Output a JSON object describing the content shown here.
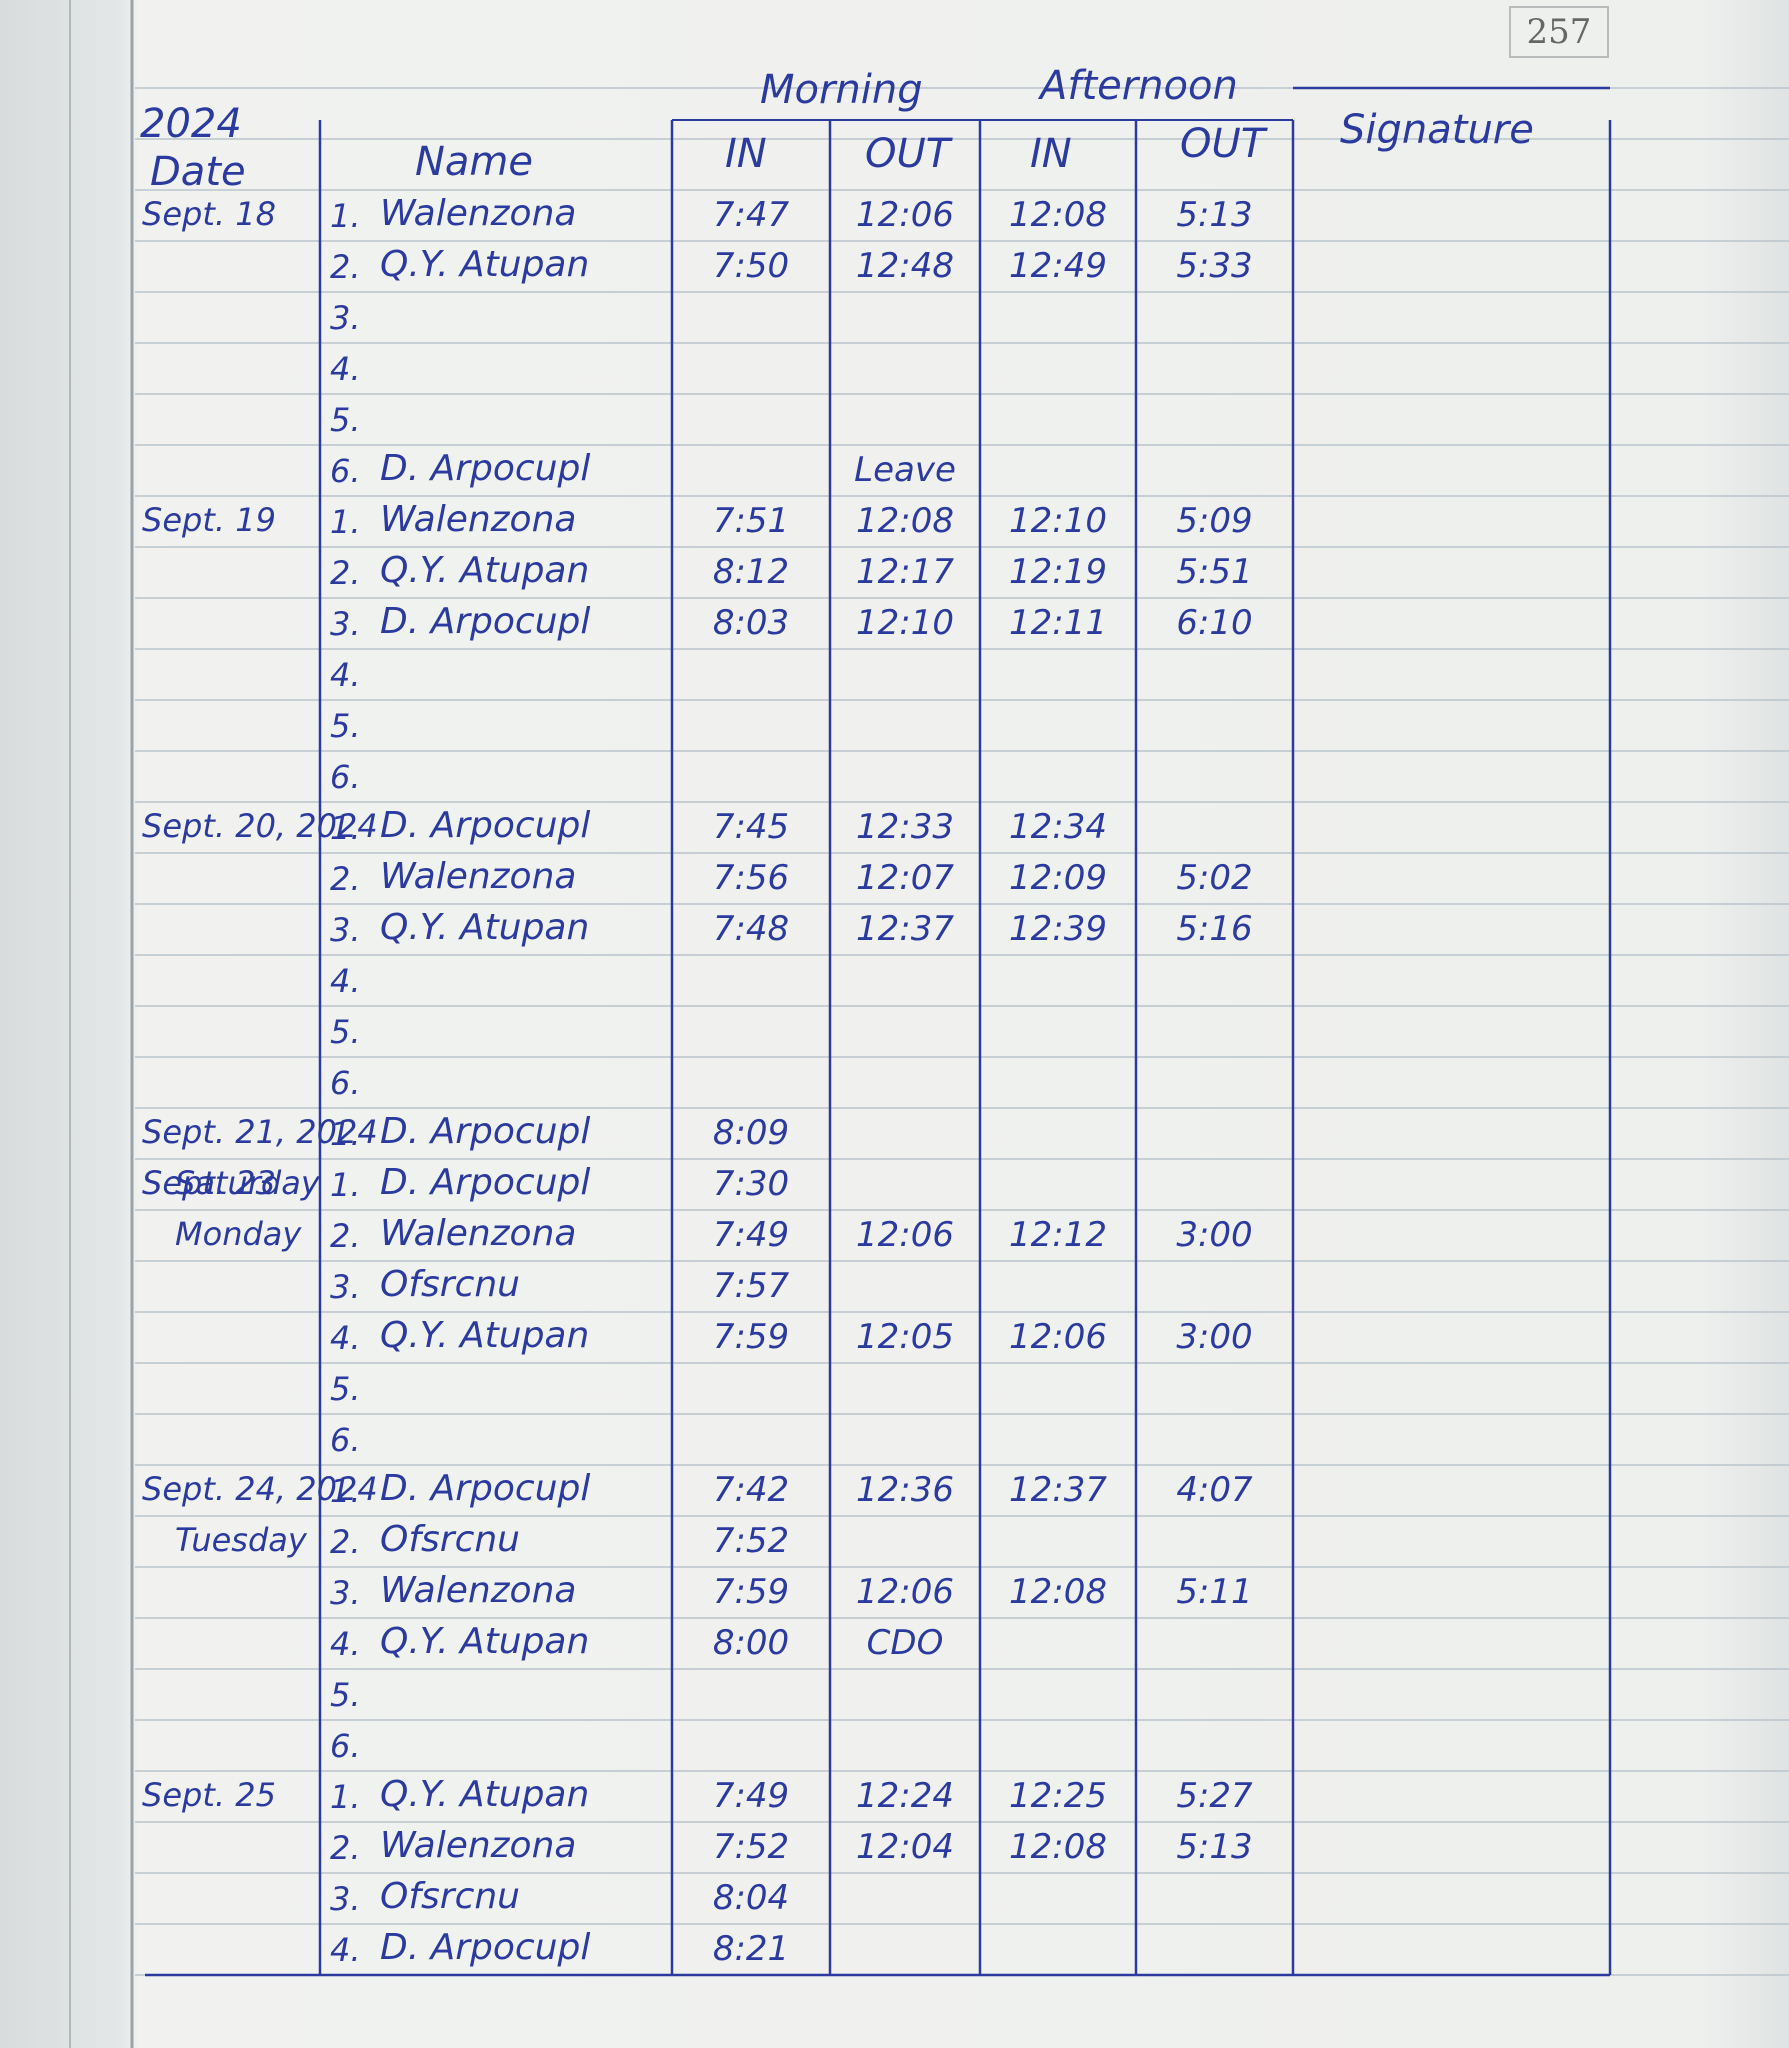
{
  "page_number": "257",
  "year": "2024",
  "headers": {
    "date": "Date",
    "name": "Name",
    "morning": "Morning",
    "afternoon": "Afternoon",
    "am_in": "IN",
    "am_out": "OUT",
    "pm_in": "IN",
    "pm_out": "OUT",
    "signature": "Signature"
  },
  "days": [
    {
      "date": "Sept. 18",
      "entries": [
        {
          "no": "1.",
          "name": "Walenzona",
          "am_in": "7:47",
          "am_out": "12:06",
          "pm_in": "12:08",
          "pm_out": "5:13"
        },
        {
          "no": "2.",
          "name": "Q.Y. Atupan",
          "am_in": "7:50",
          "am_out": "12:48",
          "pm_in": "12:49",
          "pm_out": "5:33"
        },
        {
          "no": "3."
        },
        {
          "no": "4."
        },
        {
          "no": "5."
        },
        {
          "no": "6.",
          "name": "D. Arpocupl",
          "am_out": "Leave"
        }
      ]
    },
    {
      "date": "Sept. 19",
      "entries": [
        {
          "no": "1.",
          "name": "Walenzona",
          "am_in": "7:51",
          "am_out": "12:08",
          "pm_in": "12:10",
          "pm_out": "5:09"
        },
        {
          "no": "2.",
          "name": "Q.Y. Atupan",
          "am_in": "8:12",
          "am_out": "12:17",
          "pm_in": "12:19",
          "pm_out": "5:51"
        },
        {
          "no": "3.",
          "name": "D. Arpocupl",
          "am_in": "8:03",
          "am_out": "12:10",
          "pm_in": "12:11",
          "pm_out": "6:10"
        },
        {
          "no": "4."
        },
        {
          "no": "5."
        },
        {
          "no": "6."
        }
      ]
    },
    {
      "date": "Sept. 20, 2024",
      "entries": [
        {
          "no": "1.",
          "name": "D. Arpocupl",
          "am_in": "7:45",
          "am_out": "12:33",
          "pm_in": "12:34"
        },
        {
          "no": "2.",
          "name": "Walenzona",
          "am_in": "7:56",
          "am_out": "12:07",
          "pm_in": "12:09",
          "pm_out": "5:02"
        },
        {
          "no": "3.",
          "name": "Q.Y. Atupan",
          "am_in": "7:48",
          "am_out": "12:37",
          "pm_in": "12:39",
          "pm_out": "5:16"
        },
        {
          "no": "4."
        },
        {
          "no": "5."
        },
        {
          "no": "6."
        }
      ]
    },
    {
      "date": "Sept. 21, 2024",
      "weekday": "Saturday",
      "entries": [
        {
          "no": "1.",
          "name": "D. Arpocupl",
          "am_in": "8:09"
        }
      ]
    },
    {
      "date": "Sept. 23",
      "weekday": "Monday",
      "entries": [
        {
          "no": "1.",
          "name": "D. Arpocupl",
          "am_in": "7:30"
        },
        {
          "no": "2.",
          "name": "Walenzona",
          "am_in": "7:49",
          "am_out": "12:06",
          "pm_in": "12:12",
          "pm_out": "3:00"
        },
        {
          "no": "3.",
          "name": "Ofsrcnu",
          "am_in": "7:57"
        },
        {
          "no": "4.",
          "name": "Q.Y. Atupan",
          "am_in": "7:59",
          "am_out": "12:05",
          "pm_in": "12:06",
          "pm_out": "3:00"
        },
        {
          "no": "5."
        },
        {
          "no": "6."
        }
      ]
    },
    {
      "date": "Sept. 24, 2024",
      "weekday": "Tuesday",
      "entries": [
        {
          "no": "1.",
          "name": "D. Arpocupl",
          "am_in": "7:42",
          "am_out": "12:36",
          "pm_in": "12:37",
          "pm_out": "4:07"
        },
        {
          "no": "2.",
          "name": "Ofsrcnu",
          "am_in": "7:52"
        },
        {
          "no": "3.",
          "name": "Walenzona",
          "am_in": "7:59",
          "am_out": "12:06",
          "pm_in": "12:08",
          "pm_out": "5:11"
        },
        {
          "no": "4.",
          "name": "Q.Y. Atupan",
          "am_in": "8:00",
          "am_out": "CDO"
        },
        {
          "no": "5."
        },
        {
          "no": "6."
        }
      ]
    },
    {
      "date": "Sept. 25",
      "entries": [
        {
          "no": "1.",
          "name": "Q.Y. Atupan",
          "am_in": "7:49",
          "am_out": "12:24",
          "pm_in": "12:25",
          "pm_out": "5:27"
        },
        {
          "no": "2.",
          "name": "Walenzona",
          "am_in": "7:52",
          "am_out": "12:04",
          "pm_in": "12:08",
          "pm_out": "5:13"
        },
        {
          "no": "3.",
          "name": "Ofsrcnu",
          "am_in": "8:04"
        },
        {
          "no": "4.",
          "name": "D. Arpocupl",
          "am_in": "8:21"
        }
      ]
    }
  ]
}
